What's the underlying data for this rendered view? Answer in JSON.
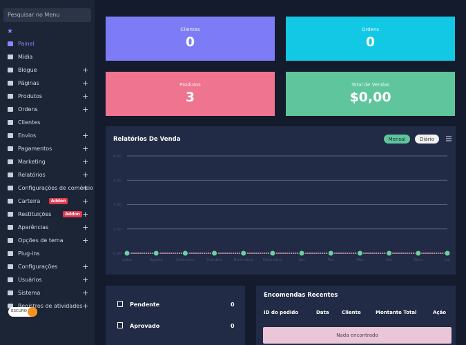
{
  "sidebar": {
    "search_placeholder": "Pesquisar no Menu",
    "items": [
      {
        "label": "Painel",
        "active": true
      },
      {
        "label": "Mídia"
      },
      {
        "label": "Blogue",
        "expandable": true
      },
      {
        "label": "Páginas",
        "expandable": true
      },
      {
        "label": "Produtos",
        "expandable": true
      },
      {
        "label": "Ordens",
        "expandable": true
      },
      {
        "label": "Clientes"
      },
      {
        "label": "Envios",
        "expandable": true
      },
      {
        "label": "Pagamentos",
        "expandable": true
      },
      {
        "label": "Marketing",
        "expandable": true
      },
      {
        "label": "Relatórios",
        "expandable": true
      },
      {
        "label": "Configurações de comércio",
        "expandable": true
      },
      {
        "label": "Carteira",
        "badge": "Addon",
        "expandable": true
      },
      {
        "label": "Restituições",
        "badge": "Addon",
        "expandable": true
      },
      {
        "label": "Aparências",
        "expandable": true
      },
      {
        "label": "Opções de tema",
        "expandable": true
      },
      {
        "label": "Plug-ins"
      },
      {
        "label": "Configurações",
        "expandable": true
      },
      {
        "label": "Usuários",
        "expandable": true
      },
      {
        "label": "Sistema",
        "expandable": true
      },
      {
        "label": "Registros de atividades",
        "expandable": true
      }
    ],
    "theme_toggle": "ESCURO"
  },
  "stats": [
    {
      "label": "Clientes",
      "value": "0",
      "color": "#7d7cf6"
    },
    {
      "label": "Ordens",
      "value": "0",
      "color": "#12c8e4"
    },
    {
      "label": "Produtos",
      "value": "3",
      "color": "#ef7490"
    },
    {
      "label": "Total de Vendas",
      "value": "$0,00",
      "color": "#5fc59d"
    }
  ],
  "chart_data": {
    "type": "line",
    "title": "Relatórios De Venda",
    "toggles": [
      "Mensal",
      "Diário"
    ],
    "categories": [
      "Julho",
      "Agosto",
      "Setembro",
      "Outubro",
      "Novembro",
      "Dezembro",
      "Jan",
      "Fev",
      "Mar",
      "Abr",
      "Maio",
      "Jun"
    ],
    "series": [
      {
        "color": "#6fcf9f",
        "values": [
          0,
          0,
          0,
          0,
          0,
          0,
          0,
          0,
          0,
          0,
          0,
          0
        ]
      }
    ],
    "ylim": [
      0,
      4
    ],
    "yticks": [
      {
        "value": 0,
        "label": "0.00"
      },
      {
        "value": 1,
        "label": "1.00"
      },
      {
        "value": 2,
        "label": "2.00"
      },
      {
        "value": 3,
        "label": "3.00"
      },
      {
        "value": 4,
        "label": "4.00"
      }
    ],
    "grid": true
  },
  "order_status": [
    {
      "label": "Pendente",
      "count": "0"
    },
    {
      "label": "Aprovado",
      "count": "0"
    }
  ],
  "recent_orders": {
    "title": "Encomendas Recentes",
    "columns": [
      "ID do pedido",
      "Data",
      "Cliente",
      "Montante Total",
      "Ação"
    ],
    "empty": "Nada encontrado"
  }
}
